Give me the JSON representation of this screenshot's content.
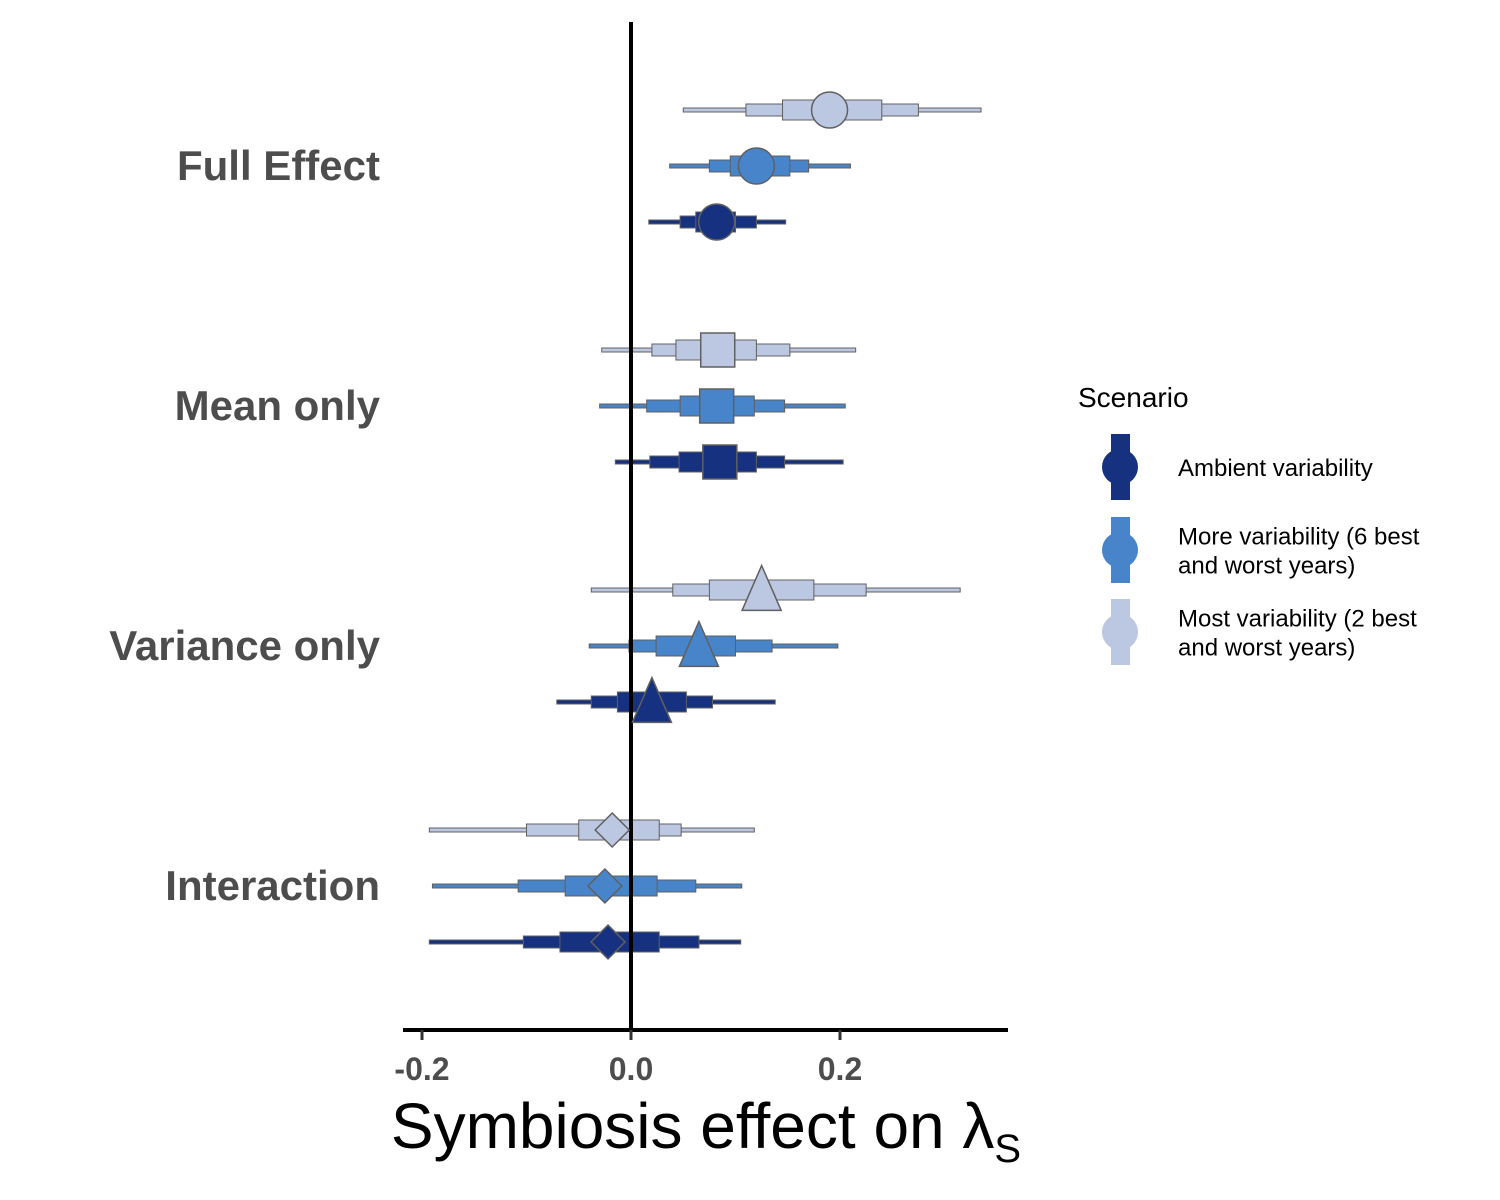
{
  "chart_data": {
    "type": "scatter",
    "title": "",
    "xlabel": "Symbiosis effect on λ",
    "xlabel_subscript": "S",
    "ylabel": "",
    "xlim": [
      -0.22,
      0.36
    ],
    "x_ticks": [
      -0.2,
      0.0,
      0.2
    ],
    "x_tick_labels": [
      "-0.2",
      "0.0",
      "0.2"
    ],
    "reference_line_x": 0,
    "grid": false,
    "legend": {
      "title": "Scenario",
      "position": "right",
      "entries": [
        {
          "lines": [
            "Ambient variability"
          ],
          "color": "#16317f"
        },
        {
          "lines": [
            "More variability (6 best",
            "and worst years)"
          ],
          "color": "#4884c9"
        },
        {
          "lines": [
            "Most variability (2 best",
            "and worst years)"
          ],
          "color": "#bcc7e2"
        }
      ]
    },
    "categories": [
      {
        "label": "Full Effect",
        "shape": "circle",
        "estimates": [
          {
            "series": "Most variability (2 best and worst years)",
            "color": "#bcc7e2",
            "median": 0.19,
            "ci50": [
              0.145,
              0.24
            ],
            "ci80": [
              0.11,
              0.275
            ],
            "ci95": [
              0.05,
              0.335
            ]
          },
          {
            "series": "More variability (6 best and worst years)",
            "color": "#4884c9",
            "median": 0.12,
            "ci50": [
              0.095,
              0.152
            ],
            "ci80": [
              0.075,
              0.17
            ],
            "ci95": [
              0.037,
              0.21
            ]
          },
          {
            "series": "Ambient variability",
            "color": "#16317f",
            "median": 0.082,
            "ci50": [
              0.062,
              0.1
            ],
            "ci80": [
              0.047,
              0.12
            ],
            "ci95": [
              0.017,
              0.148
            ]
          }
        ]
      },
      {
        "label": "Mean only",
        "shape": "square",
        "estimates": [
          {
            "series": "Most variability (2 best and worst years)",
            "color": "#bcc7e2",
            "median": 0.083,
            "ci50": [
              0.043,
              0.12
            ],
            "ci80": [
              0.02,
              0.152
            ],
            "ci95": [
              -0.028,
              0.215
            ]
          },
          {
            "series": "More variability (6 best and worst years)",
            "color": "#4884c9",
            "median": 0.082,
            "ci50": [
              0.047,
              0.118
            ],
            "ci80": [
              0.015,
              0.147
            ],
            "ci95": [
              -0.03,
              0.205
            ]
          },
          {
            "series": "Ambient variability",
            "color": "#16317f",
            "median": 0.085,
            "ci50": [
              0.046,
              0.12
            ],
            "ci80": [
              0.018,
              0.147
            ],
            "ci95": [
              -0.015,
              0.203
            ]
          }
        ]
      },
      {
        "label": "Variance only",
        "shape": "triangle",
        "estimates": [
          {
            "series": "Most variability (2 best and worst years)",
            "color": "#bcc7e2",
            "median": 0.125,
            "ci50": [
              0.075,
              0.175
            ],
            "ci80": [
              0.04,
              0.225
            ],
            "ci95": [
              -0.038,
              0.315
            ]
          },
          {
            "series": "More variability (6 best and worst years)",
            "color": "#4884c9",
            "median": 0.065,
            "ci50": [
              0.024,
              0.1
            ],
            "ci80": [
              -0.002,
              0.135
            ],
            "ci95": [
              -0.04,
              0.198
            ]
          },
          {
            "series": "Ambient variability",
            "color": "#16317f",
            "median": 0.02,
            "ci50": [
              -0.013,
              0.053
            ],
            "ci80": [
              -0.038,
              0.078
            ],
            "ci95": [
              -0.071,
              0.138
            ]
          }
        ]
      },
      {
        "label": "Interaction",
        "shape": "diamond",
        "estimates": [
          {
            "series": "Most variability (2 best and worst years)",
            "color": "#bcc7e2",
            "median": -0.018,
            "ci50": [
              -0.05,
              0.027
            ],
            "ci80": [
              -0.1,
              0.048
            ],
            "ci95": [
              -0.193,
              0.118
            ]
          },
          {
            "series": "More variability (6 best and worst years)",
            "color": "#4884c9",
            "median": -0.025,
            "ci50": [
              -0.063,
              0.025
            ],
            "ci80": [
              -0.108,
              0.062
            ],
            "ci95": [
              -0.19,
              0.106
            ]
          },
          {
            "series": "Ambient variability",
            "color": "#16317f",
            "median": -0.022,
            "ci50": [
              -0.068,
              0.027
            ],
            "ci80": [
              -0.103,
              0.065
            ],
            "ci95": [
              -0.193,
              0.105
            ]
          }
        ]
      }
    ]
  }
}
